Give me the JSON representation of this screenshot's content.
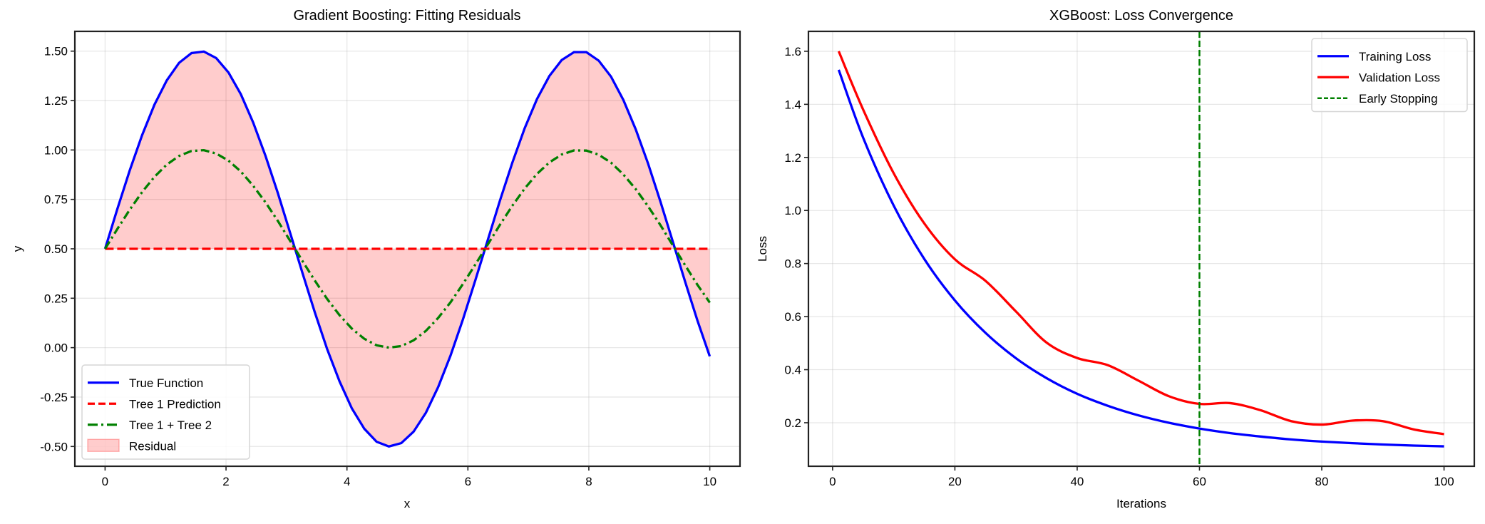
{
  "chart_data": [
    {
      "type": "line",
      "title": "Gradient Boosting: Fitting Residuals",
      "xlabel": "x",
      "ylabel": "y",
      "xlim": [
        -0.5,
        10.5
      ],
      "ylim": [
        -0.6,
        1.6
      ],
      "xticks": [
        0,
        2,
        4,
        6,
        8,
        10
      ],
      "xtick_labels": [
        "0",
        "2",
        "4",
        "6",
        "8",
        "10"
      ],
      "yticks": [
        -0.5,
        -0.25,
        0,
        0.25,
        0.5,
        0.75,
        1.0,
        1.25,
        1.5
      ],
      "ytick_labels": [
        "-0.50",
        "-0.25",
        "0.00",
        "0.25",
        "0.50",
        "0.75",
        "1.00",
        "1.25",
        "1.50"
      ],
      "grid": true,
      "legend_position": "lower-left",
      "x": [
        0,
        0.204,
        0.408,
        0.612,
        0.816,
        1.02,
        1.224,
        1.429,
        1.633,
        1.837,
        2.041,
        2.245,
        2.449,
        2.653,
        2.857,
        3.061,
        3.265,
        3.469,
        3.673,
        3.878,
        4.082,
        4.286,
        4.49,
        4.694,
        4.898,
        5.102,
        5.306,
        5.51,
        5.714,
        5.918,
        6.122,
        6.327,
        6.531,
        6.735,
        6.939,
        7.143,
        7.347,
        7.551,
        7.755,
        7.959,
        8.163,
        8.367,
        8.571,
        8.776,
        8.98,
        9.184,
        9.388,
        9.592,
        9.796,
        10
      ],
      "series": [
        {
          "name": "True Function",
          "color": "#0000ff",
          "style": "solid",
          "values": [
            0.5,
            0.703,
            0.897,
            1.075,
            1.229,
            1.352,
            1.441,
            1.49,
            1.498,
            1.465,
            1.392,
            1.282,
            1.139,
            0.97,
            0.782,
            0.58,
            0.377,
            0.178,
            -0.008,
            -0.171,
            -0.308,
            -0.41,
            -0.476,
            -0.5,
            -0.483,
            -0.425,
            -0.329,
            -0.198,
            -0.039,
            0.143,
            0.34,
            0.543,
            0.745,
            0.936,
            1.11,
            1.258,
            1.374,
            1.455,
            1.495,
            1.495,
            1.452,
            1.371,
            1.253,
            1.104,
            0.931,
            0.739,
            0.537,
            0.334,
            0.137,
            -0.044
          ]
        },
        {
          "name": "Tree 1 Prediction",
          "color": "#ff0000",
          "style": "dashed",
          "constant": 0.5
        },
        {
          "name": "Tree 1 + Tree 2",
          "color": "#008000",
          "style": "dashdot",
          "values": [
            0.5,
            0.601,
            0.698,
            0.787,
            0.864,
            0.926,
            0.97,
            0.995,
            0.999,
            0.982,
            0.946,
            0.891,
            0.819,
            0.735,
            0.641,
            0.54,
            0.438,
            0.339,
            0.246,
            0.164,
            0.096,
            0.045,
            0.012,
            0.0,
            0.008,
            0.037,
            0.085,
            0.151,
            0.23,
            0.322,
            0.42,
            0.521,
            0.622,
            0.718,
            0.805,
            0.879,
            0.937,
            0.977,
            0.998,
            0.997,
            0.976,
            0.936,
            0.876,
            0.802,
            0.715,
            0.62,
            0.518,
            0.417,
            0.318,
            0.228
          ]
        }
      ],
      "fill": {
        "name": "Residual",
        "color": "#ff0000",
        "alpha": 0.2,
        "between": [
          "True Function",
          "Tree 1 Prediction"
        ]
      }
    },
    {
      "type": "line",
      "title": "XGBoost: Loss Convergence",
      "xlabel": "Iterations",
      "ylabel": "Loss",
      "xlim": [
        -3.95,
        104.95
      ],
      "ylim": [
        0.036,
        1.675
      ],
      "xticks": [
        0,
        20,
        40,
        60,
        80,
        100
      ],
      "xtick_labels": [
        "0",
        "20",
        "40",
        "60",
        "80",
        "100"
      ],
      "yticks": [
        0.2,
        0.4,
        0.6,
        0.8,
        1.0,
        1.2,
        1.4,
        1.6
      ],
      "ytick_labels": [
        "0.2",
        "0.4",
        "0.6",
        "0.8",
        "1.0",
        "1.2",
        "1.4",
        "1.6"
      ],
      "grid": true,
      "legend_position": "upper-right",
      "x": [
        1,
        5,
        10,
        15,
        20,
        25,
        30,
        35,
        40,
        45,
        50,
        55,
        60,
        65,
        70,
        75,
        80,
        85,
        90,
        95,
        100
      ],
      "series": [
        {
          "name": "Training Loss",
          "color": "#0000ff",
          "style": "solid",
          "values": [
            1.53,
            1.274,
            1.018,
            0.817,
            0.661,
            0.539,
            0.443,
            0.368,
            0.309,
            0.264,
            0.228,
            0.2,
            0.178,
            0.161,
            0.148,
            0.137,
            0.129,
            0.123,
            0.118,
            0.114,
            0.111
          ]
        },
        {
          "name": "Validation Loss",
          "color": "#ff0000",
          "style": "solid",
          "values": [
            1.6,
            1.38,
            1.14,
            0.951,
            0.816,
            0.735,
            0.619,
            0.502,
            0.444,
            0.417,
            0.359,
            0.3,
            0.271,
            0.274,
            0.247,
            0.206,
            0.193,
            0.208,
            0.206,
            0.175,
            0.157
          ]
        }
      ],
      "vline": {
        "name": "Early Stopping",
        "x": 60,
        "color": "#008000",
        "style": "dashed"
      }
    }
  ]
}
